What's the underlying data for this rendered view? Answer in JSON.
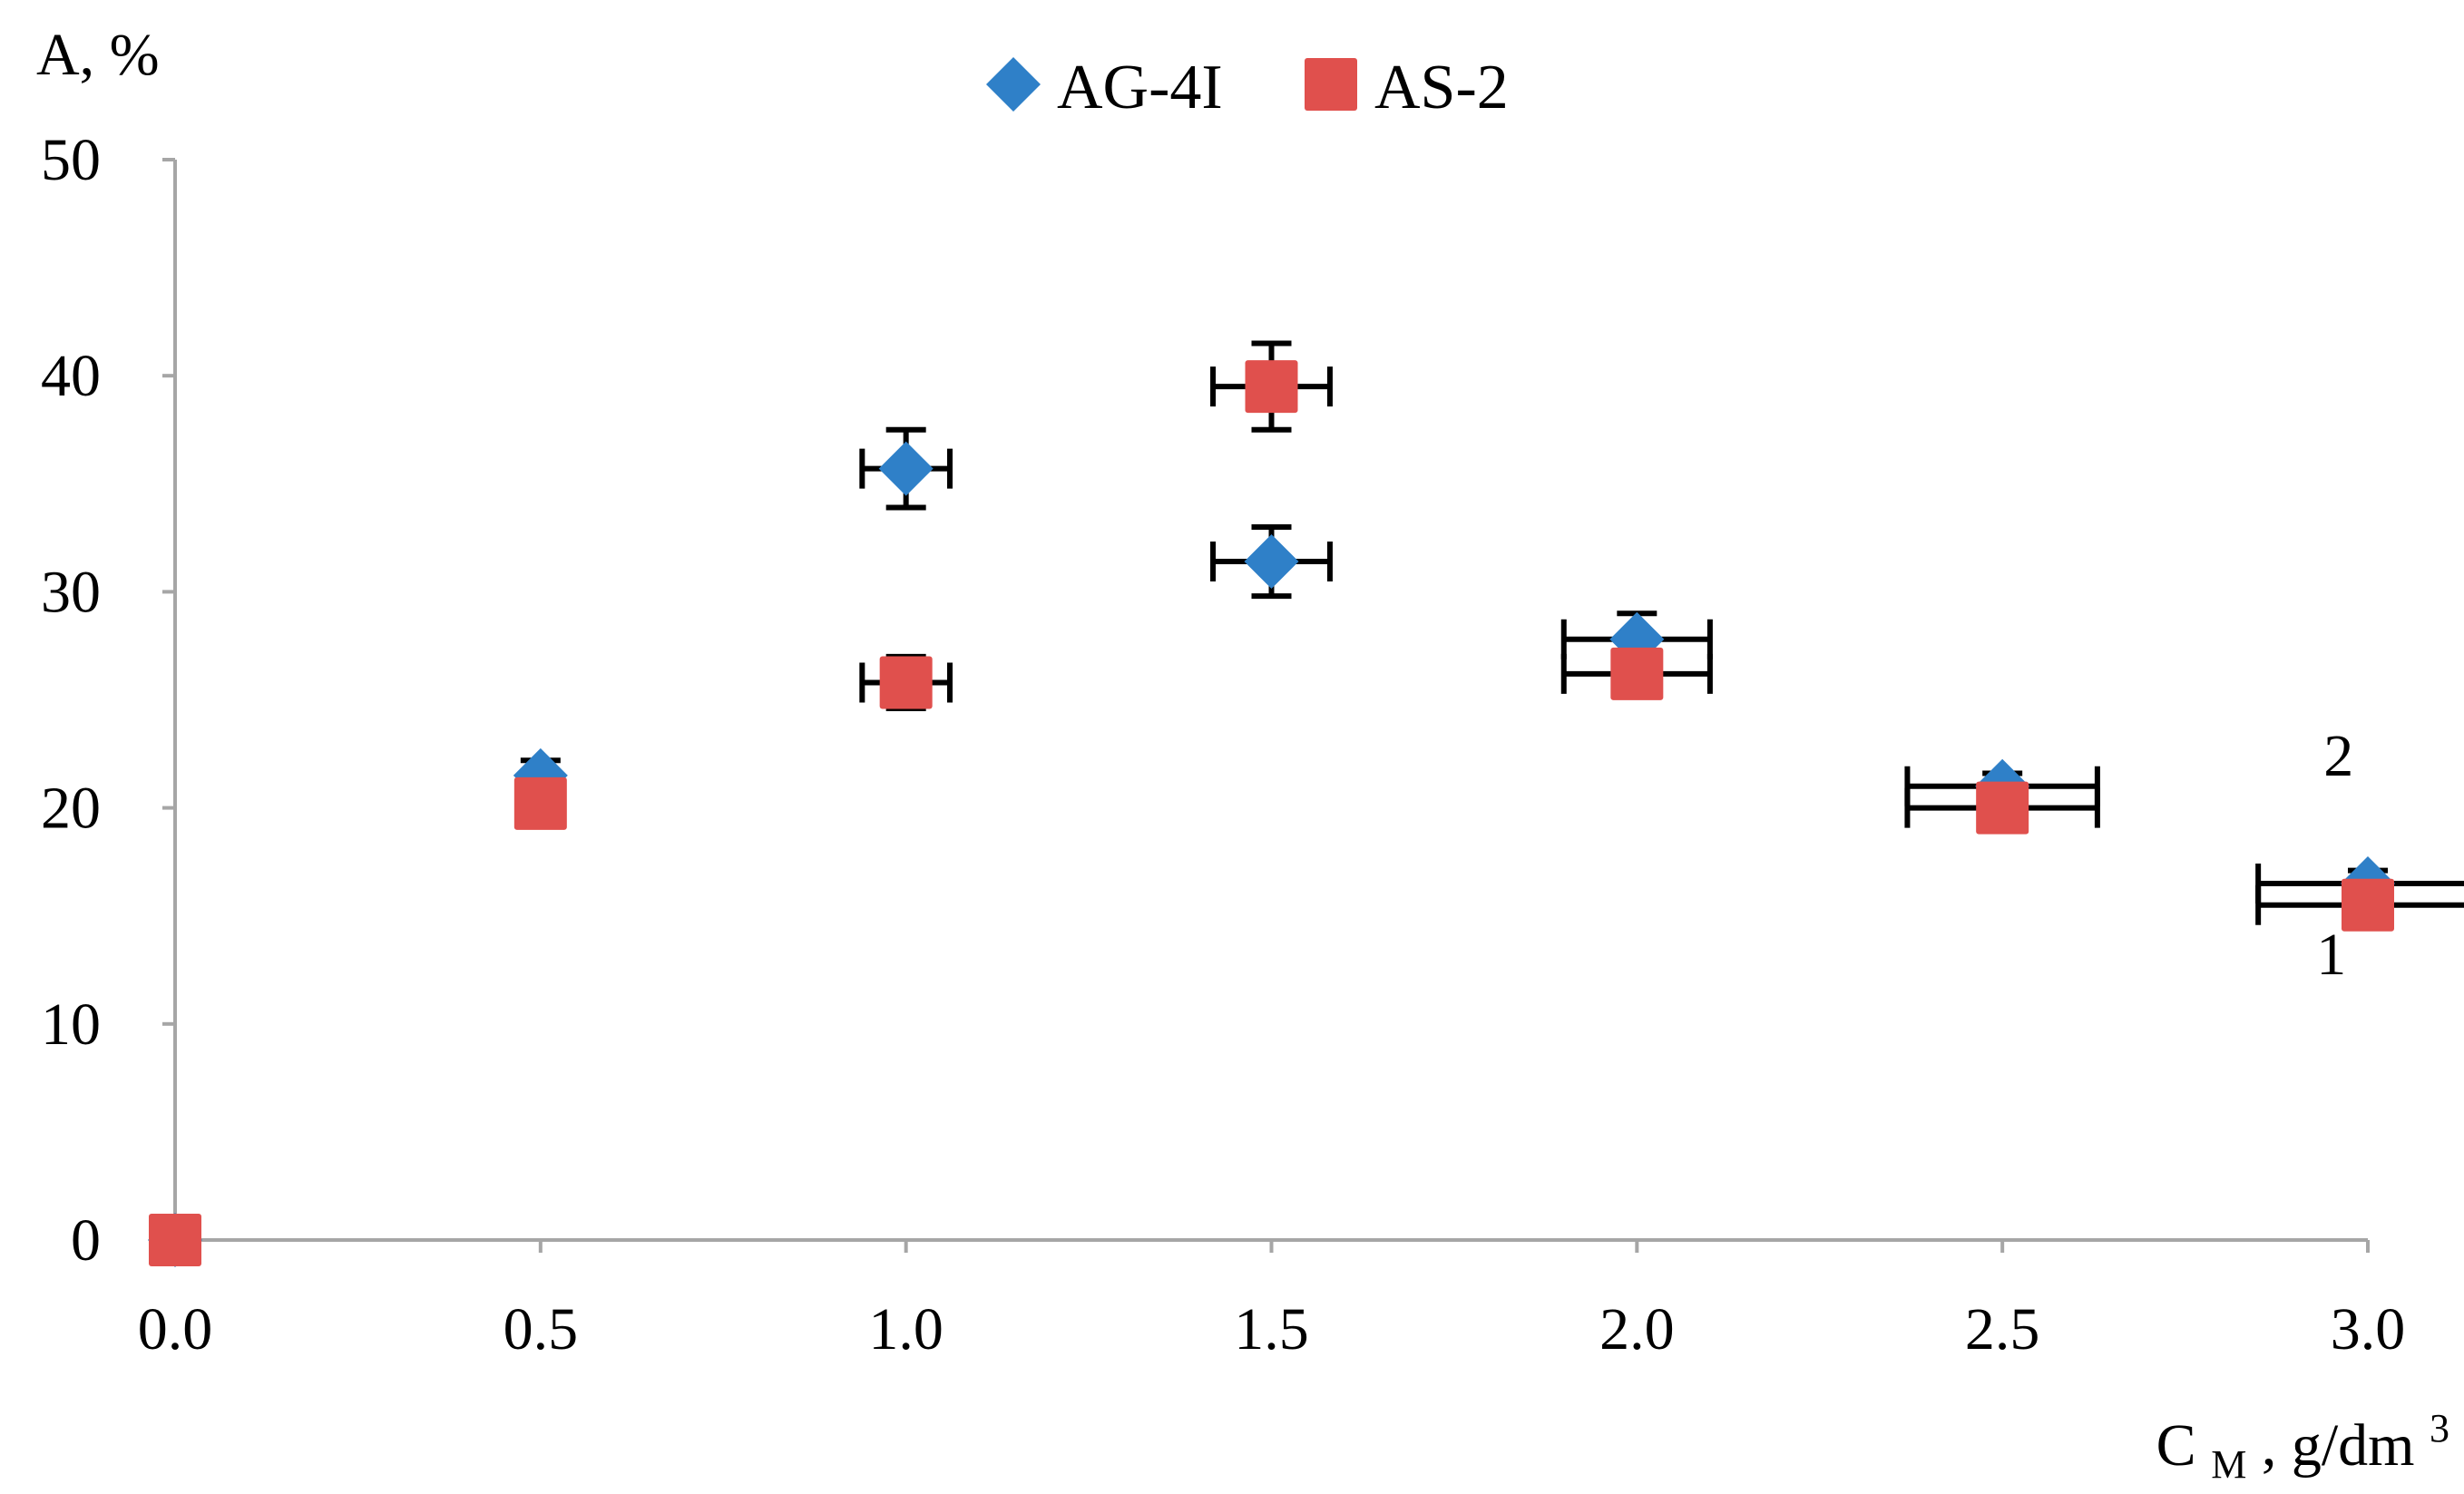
{
  "chart_data": {
    "type": "scatter",
    "title": "",
    "ylabel": "A, %",
    "xlabel": {
      "main": "C",
      "sub": "M",
      "rest": ", g/dm",
      "sup": "3"
    },
    "xlim": [
      0.0,
      3.0
    ],
    "ylim": [
      0,
      50
    ],
    "xticks": [
      "0.0",
      "0.5",
      "1.0",
      "1.5",
      "2.0",
      "2.5",
      "3.0"
    ],
    "yticks": [
      "0",
      "10",
      "20",
      "30",
      "40",
      "50"
    ],
    "grid": false,
    "legend_position": "top-center",
    "series": [
      {
        "name": "AG-4I",
        "marker": "diamond",
        "color": "#2f80c8",
        "points": [
          {
            "x": 0.0,
            "y": 0.0,
            "xerr": 0.0,
            "yerr": 0.0
          },
          {
            "x": 0.5,
            "y": 21.5,
            "xerr": 0.0,
            "yerr": 0.7
          },
          {
            "x": 1.0,
            "y": 35.7,
            "xerr": 0.06,
            "yerr": 1.8
          },
          {
            "x": 1.5,
            "y": 31.4,
            "xerr": 0.08,
            "yerr": 1.6
          },
          {
            "x": 2.0,
            "y": 27.8,
            "xerr": 0.1,
            "yerr": 1.2
          },
          {
            "x": 2.5,
            "y": 21.0,
            "xerr": 0.13,
            "yerr": 0.6
          },
          {
            "x": 3.0,
            "y": 16.5,
            "xerr": 0.15,
            "yerr": 0.6
          }
        ]
      },
      {
        "name": "AS-2",
        "marker": "square",
        "color": "#e0504d",
        "points": [
          {
            "x": 0.0,
            "y": 0.0,
            "xerr": 0.0,
            "yerr": 0.0
          },
          {
            "x": 0.5,
            "y": 20.2,
            "xerr": 0.0,
            "yerr": 0.5
          },
          {
            "x": 1.0,
            "y": 25.8,
            "xerr": 0.06,
            "yerr": 1.2
          },
          {
            "x": 1.5,
            "y": 39.5,
            "xerr": 0.08,
            "yerr": 2.0
          },
          {
            "x": 2.0,
            "y": 26.2,
            "xerr": 0.1,
            "yerr": 0.8
          },
          {
            "x": 2.5,
            "y": 20.0,
            "xerr": 0.13,
            "yerr": 0.5
          },
          {
            "x": 3.0,
            "y": 15.5,
            "xerr": 0.15,
            "yerr": 0.5
          }
        ]
      }
    ],
    "annotations": [
      {
        "text": "2",
        "x": 2.96,
        "y": 21.5
      },
      {
        "text": "1",
        "x": 2.95,
        "y": 12.3
      }
    ]
  }
}
